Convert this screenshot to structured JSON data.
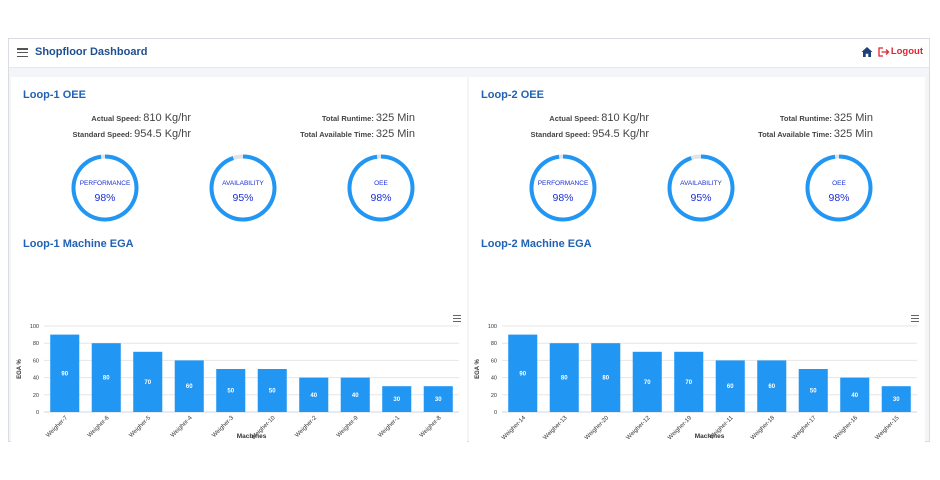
{
  "header": {
    "title": "Shopfloor Dashboard",
    "logout_label": "Logout"
  },
  "colors": {
    "accent": "#2196f3",
    "title": "#1d4f8f",
    "logout": "#e0252e",
    "gauge_text": "#1a2fd6"
  },
  "loops": [
    {
      "oee_title": "Loop-1 OEE",
      "actual_speed_label": "Actual Speed:",
      "actual_speed": "810 Kg/hr",
      "standard_speed_label": "Standard Speed:",
      "standard_speed": "954.5 Kg/hr",
      "total_runtime_label": "Total Runtime:",
      "total_runtime": "325 Min",
      "total_available_label": "Total Available Time:",
      "total_available": "325 Min",
      "gauges": [
        {
          "label": "PERFORMANCE",
          "value": "98%",
          "fraction": 0.98
        },
        {
          "label": "AVAILABILITY",
          "value": "95%",
          "fraction": 0.95
        },
        {
          "label": "OEE",
          "value": "98%",
          "fraction": 0.98
        }
      ],
      "ega_title": "Loop-1 Machine EGA"
    },
    {
      "oee_title": "Loop-2 OEE",
      "actual_speed_label": "Actual Speed:",
      "actual_speed": "810 Kg/hr",
      "standard_speed_label": "Standard Speed:",
      "standard_speed": "954.5 Kg/hr",
      "total_runtime_label": "Total Runtime:",
      "total_runtime": "325 Min",
      "total_available_label": "Total Available Time:",
      "total_available": "325 Min",
      "gauges": [
        {
          "label": "PERFORMANCE",
          "value": "98%",
          "fraction": 0.98
        },
        {
          "label": "AVAILABILITY",
          "value": "95%",
          "fraction": 0.95
        },
        {
          "label": "OEE",
          "value": "98%",
          "fraction": 0.98
        }
      ],
      "ega_title": "Loop-2 Machine EGA"
    }
  ],
  "chart_data": [
    {
      "type": "bar",
      "categories": [
        "Weigher-7",
        "Weigher-6",
        "Weigher-5",
        "Weigher-4",
        "Weigher-3",
        "Weigher-10",
        "Weigher-2",
        "Weigher-9",
        "Weigher-1",
        "Weigher-8"
      ],
      "values": [
        90,
        80,
        70,
        60,
        50,
        50,
        40,
        40,
        30,
        30
      ],
      "xlabel": "Machines",
      "ylabel": "EGA %",
      "ylim": [
        0,
        100
      ],
      "yticks": [
        0,
        20,
        40,
        60,
        80,
        100
      ],
      "grid": true,
      "data_labels": true
    },
    {
      "type": "bar",
      "categories": [
        "Weigher-14",
        "Weigher-13",
        "Weigher-20",
        "Weigher-12",
        "Weigher-19",
        "Weigher-11",
        "Weigher-18",
        "Weigher-17",
        "Weigher-16",
        "Weigher-15"
      ],
      "values": [
        90,
        80,
        80,
        70,
        70,
        60,
        60,
        50,
        40,
        30
      ],
      "xlabel": "Machines",
      "ylabel": "EGA %",
      "ylim": [
        0,
        100
      ],
      "yticks": [
        0,
        20,
        40,
        60,
        80,
        100
      ],
      "grid": true,
      "data_labels": true
    }
  ]
}
